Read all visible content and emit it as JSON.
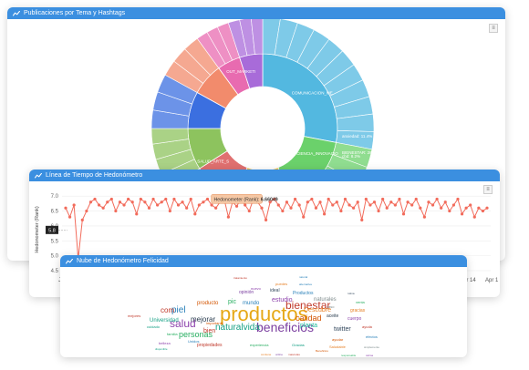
{
  "panels": {
    "sunburst": {
      "title": "Publicaciones por Tema y Hashtags"
    },
    "timeline": {
      "title": "Línea de Tiempo de Hedonómetro"
    },
    "cloud": {
      "title": "Nube de Hedonómetro Felicidad"
    }
  },
  "sunburst": {
    "center_labels": [
      "COMUNICACION_ME",
      "CIENCIA_INNOVACIO",
      "ECONOMIA_MEDICO",
      "SALUD_ARTE_S",
      "OUT_MARKETI"
    ],
    "outer_labels": [
      "anxiedad: 11.4%",
      "cbd: 8.2%",
      "CBD: 6.3%",
      "saludmental: 6.",
      "BIENESTAR: 28.7"
    ],
    "colors": [
      "#f28b6c",
      "#e86bb0",
      "#a86bd9",
      "#6d74e0",
      "#53b8e0",
      "#6bd16b",
      "#f2c14a",
      "#e07070",
      "#8dc35e",
      "#3b6fe0"
    ]
  },
  "timeline_chart": {
    "ylabel": "Hedonometer (Rank)",
    "y_ticks": [
      "7.0",
      "6.5",
      "6.0",
      "5.5",
      "5.0",
      "4.5"
    ],
    "x_ticks": [
      "Jan 0",
      "pr 14",
      "Apr 1"
    ],
    "tooltip_label": "Hedonometer (Rank):",
    "tooltip_value": "6.66049",
    "crosshair_value": "5.8",
    "line_color": "#f26b5b"
  },
  "chart_data": {
    "type": "line",
    "title": "Línea de Tiempo de Hedonómetro",
    "ylabel": "Hedonometer (Rank)",
    "ylim": [
      4.5,
      7.25
    ],
    "series": [
      {
        "values": [
          6.6,
          6.3,
          6.7,
          4.9,
          6.2,
          6.5,
          6.8,
          6.9,
          6.7,
          6.6,
          6.8,
          6.9,
          6.5,
          6.8,
          6.7,
          6.9,
          6.8,
          6.4,
          6.9,
          6.8,
          6.6,
          6.9,
          6.7,
          6.8,
          6.9,
          6.5,
          6.9,
          6.7,
          6.8,
          6.6,
          6.9,
          6.4,
          6.7,
          6.8,
          6.9,
          6.7,
          6.6,
          6.8,
          6.9,
          6.3,
          6.8,
          6.66,
          6.9,
          6.7,
          6.5,
          6.9,
          6.8,
          6.6,
          6.2,
          6.8,
          6.9,
          6.7,
          6.5,
          6.8,
          6.6,
          6.9,
          6.7,
          6.3,
          6.8,
          6.9,
          6.6,
          6.8,
          6.4,
          6.9,
          6.7,
          6.8,
          6.5,
          6.9,
          6.7,
          6.6,
          6.8,
          6.2,
          6.9,
          6.7,
          6.8,
          6.5,
          6.9,
          6.6,
          6.8,
          6.7,
          6.9,
          6.4,
          6.8,
          6.7,
          6.9,
          6.6,
          6.3,
          6.8,
          6.7,
          6.9,
          6.6,
          6.8,
          6.5,
          6.7,
          6.9,
          6.4,
          6.6,
          6.7,
          6.3,
          6.6,
          6.5,
          6.6
        ]
      }
    ]
  },
  "wordcloud": {
    "words": [
      {
        "t": "productos",
        "s": 22,
        "c": "#e6a817"
      },
      {
        "t": "beneficios",
        "s": 14,
        "c": "#7b3fa0"
      },
      {
        "t": "bienestar",
        "s": 12,
        "c": "#c0392b"
      },
      {
        "t": "salud",
        "s": 12,
        "c": "#8e44ad"
      },
      {
        "t": "naturalvida",
        "s": 10,
        "c": "#16a085"
      },
      {
        "t": "piel",
        "s": 10,
        "c": "#2980b9"
      },
      {
        "t": "calidad",
        "s": 9,
        "c": "#d35400"
      },
      {
        "t": "personas",
        "s": 9,
        "c": "#27ae60"
      },
      {
        "t": "mejorar",
        "s": 8,
        "c": "#2c3e50"
      },
      {
        "t": "com",
        "s": 8,
        "c": "#c0392b"
      },
      {
        "t": "Descubre",
        "s": 7,
        "c": "#e67e22"
      },
      {
        "t": "planta",
        "s": 7,
        "c": "#1abc9c"
      },
      {
        "t": "twitter",
        "s": 7,
        "c": "#34495e"
      },
      {
        "t": "estudio",
        "s": 7,
        "c": "#8e44ad"
      },
      {
        "t": "mundo",
        "s": 6,
        "c": "#2980b9"
      },
      {
        "t": "bien",
        "s": 7,
        "c": "#c0392b"
      },
      {
        "t": "pic",
        "s": 7,
        "c": "#27ae60"
      },
      {
        "t": "producto",
        "s": 6,
        "c": "#d35400"
      },
      {
        "t": "Universidad",
        "s": 6,
        "c": "#16a085"
      },
      {
        "t": "naturales",
        "s": 6,
        "c": "#7f8c8d"
      },
      {
        "t": "aceite",
        "s": 5,
        "c": "#2c3e50"
      },
      {
        "t": "cuerpo",
        "s": 5,
        "c": "#8e44ad"
      },
      {
        "t": "gracias",
        "s": 5,
        "c": "#e67e22"
      },
      {
        "t": "Productos",
        "s": 5,
        "c": "#2980b9"
      },
      {
        "t": "propiedades",
        "s": 5,
        "c": "#c0392b"
      },
      {
        "t": "experiencia",
        "s": 4,
        "c": "#27ae60"
      },
      {
        "t": "Gracias",
        "s": 4,
        "c": "#16a085"
      },
      {
        "t": "opinión",
        "s": 5,
        "c": "#7b3fa0"
      },
      {
        "t": "importante",
        "s": 4,
        "c": "#d35400"
      },
      {
        "t": "ideal",
        "s": 5,
        "c": "#34495e"
      },
      {
        "t": "ayuda",
        "s": 4,
        "c": "#c0392b"
      },
      {
        "t": "efectos",
        "s": 4,
        "c": "#2980b9"
      },
      {
        "t": "nuevo",
        "s": 4,
        "c": "#8e44ad"
      },
      {
        "t": "puedes",
        "s": 4,
        "c": "#e67e22"
      },
      {
        "t": "venta",
        "s": 4,
        "c": "#27ae60"
      },
      {
        "t": "caso",
        "s": 4,
        "c": "#7f8c8d"
      },
      {
        "t": "mejores",
        "s": 4,
        "c": "#c0392b"
      },
      {
        "t": "cuidado",
        "s": 4,
        "c": "#16a085"
      },
      {
        "t": "Unidos",
        "s": 4,
        "c": "#2980b9"
      },
      {
        "t": "ayudar",
        "s": 4,
        "c": "#d35400"
      },
      {
        "t": "belleza",
        "s": 4,
        "c": "#8e44ad"
      },
      {
        "t": "familia",
        "s": 4,
        "c": "#27ae60"
      },
      {
        "t": "Saludable",
        "s": 4,
        "c": "#e67e22"
      },
      {
        "t": "tratamiento",
        "s": 3,
        "c": "#c0392b"
      },
      {
        "t": "alternativa",
        "s": 3,
        "c": "#2980b9"
      },
      {
        "t": "rutina",
        "s": 3,
        "c": "#34495e"
      },
      {
        "t": "simplemente",
        "s": 3,
        "c": "#7f8c8d"
      },
      {
        "t": "disponible",
        "s": 3,
        "c": "#16a085"
      },
      {
        "t": "calma",
        "s": 3,
        "c": "#8e44ad"
      },
      {
        "t": "Beneficios",
        "s": 3,
        "c": "#d35400"
      },
      {
        "t": "responsable",
        "s": 3,
        "c": "#27ae60"
      },
      {
        "t": "mascotas",
        "s": 3,
        "c": "#c0392b"
      },
      {
        "t": "natural",
        "s": 3,
        "c": "#2980b9"
      },
      {
        "t": "online",
        "s": 3,
        "c": "#7b3fa0"
      },
      {
        "t": "contiene",
        "s": 3,
        "c": "#e67e22"
      }
    ]
  }
}
